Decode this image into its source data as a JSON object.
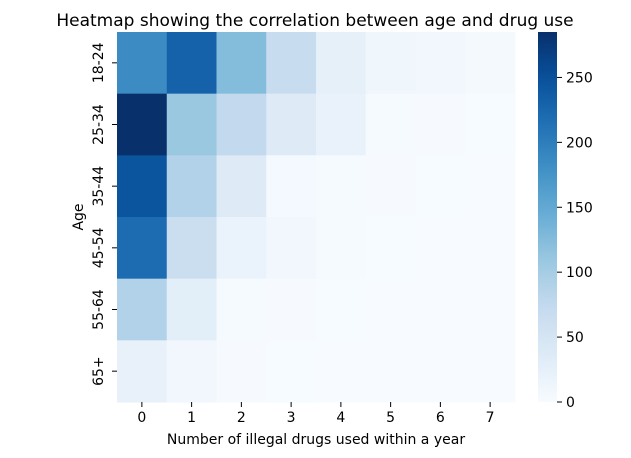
{
  "chart_data": {
    "type": "heatmap",
    "title": "Heatmap showing the correlation between age and drug use",
    "xlabel": "Number of illegal drugs used within a year",
    "ylabel": "Age",
    "x_categories": [
      "0",
      "1",
      "2",
      "3",
      "4",
      "5",
      "6",
      "7"
    ],
    "y_categories": [
      "18-24",
      "25-34",
      "35-44",
      "45-54",
      "55-64",
      "65+"
    ],
    "values": [
      [
        185,
        230,
        125,
        70,
        25,
        12,
        8,
        4
      ],
      [
        285,
        110,
        75,
        35,
        20,
        3,
        2,
        1
      ],
      [
        245,
        90,
        35,
        5,
        3,
        2,
        1,
        0
      ],
      [
        220,
        65,
        18,
        8,
        3,
        1,
        0,
        0
      ],
      [
        90,
        30,
        3,
        2,
        1,
        0,
        0,
        0
      ],
      [
        22,
        8,
        2,
        1,
        0,
        0,
        0,
        0
      ]
    ],
    "colorbar": {
      "colormap": "Blues",
      "min": 0,
      "max": 285,
      "ticks": [
        0,
        50,
        100,
        150,
        200,
        250
      ]
    },
    "grid": false
  }
}
